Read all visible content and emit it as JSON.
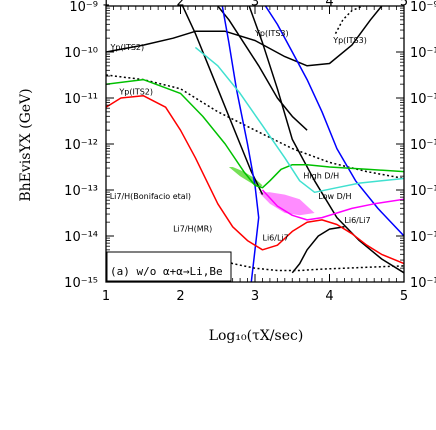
{
  "chart_data": {
    "type": "line",
    "panel_label": "(a) w/o α+α→Li,Be",
    "xlabel": "Log₁₀(τX/sec)",
    "ylabel": "BhEvisYX (GeV)",
    "xlim": [
      1,
      5
    ],
    "ylim": [
      -15,
      -9
    ],
    "y_log": true,
    "x_ticks": [
      {
        "value": 1,
        "label": "1"
      },
      {
        "value": 2,
        "label": "2"
      },
      {
        "value": 3,
        "label": "3"
      },
      {
        "value": 4,
        "label": "4"
      },
      {
        "value": 5,
        "label": "5"
      }
    ],
    "y_ticks": [
      {
        "value": -9,
        "label": "10⁻⁹"
      },
      {
        "value": -10,
        "label": "10⁻¹⁰"
      },
      {
        "value": -11,
        "label": "10⁻¹¹"
      },
      {
        "value": -12,
        "label": "10⁻¹²"
      },
      {
        "value": -13,
        "label": "10⁻¹³"
      },
      {
        "value": -14,
        "label": "10⁻¹⁴"
      },
      {
        "value": -15,
        "label": "10⁻¹⁵"
      }
    ],
    "annotations": [
      {
        "text": "Yp(ITS2)",
        "x": 1.06,
        "y": -9.96
      },
      {
        "text": "Yp(ITS3)",
        "x": 3.0,
        "y": -9.65
      },
      {
        "text": "Yp(ITS3)",
        "x": 4.05,
        "y": -9.8
      },
      {
        "text": "Yp(ITS2)",
        "x": 1.18,
        "y": -10.92
      },
      {
        "text": "Li7/H(Bonifacio etal)",
        "x": 1.05,
        "y": -13.2
      },
      {
        "text": "Li7/H(MR)",
        "x": 1.9,
        "y": -13.9
      },
      {
        "text": "High D/H",
        "x": 3.65,
        "y": -12.75
      },
      {
        "text": "Low D/H",
        "x": 3.85,
        "y": -13.2
      },
      {
        "text": "Li6/Li7",
        "x": 4.2,
        "y": -13.72
      },
      {
        "text": "Li6/Li7",
        "x": 3.1,
        "y": -14.1
      }
    ],
    "series": [
      {
        "color": "#000000",
        "style": "solid",
        "x": [
          1.0,
          1.5,
          1.9,
          2.2,
          2.6,
          3.0,
          3.4,
          3.7,
          4.0,
          4.3,
          4.55,
          4.7
        ],
        "y": [
          -10.0,
          -9.85,
          -9.7,
          -9.55,
          -9.55,
          -9.75,
          -10.1,
          -10.3,
          -10.25,
          -9.85,
          -9.3,
          -9.0
        ]
      },
      {
        "color": "#000000",
        "style": "dotted",
        "x": [
          4.08,
          4.18,
          4.3,
          4.45,
          4.6,
          4.75
        ],
        "y": [
          -9.6,
          -9.3,
          -9.1,
          -9.0,
          -8.95,
          -8.9
        ]
      },
      {
        "color": "#000000",
        "style": "dotted",
        "x": [
          1.0,
          1.5,
          2.0,
          2.5,
          3.0,
          3.5,
          4.0,
          4.5,
          5.0
        ],
        "y": [
          -10.5,
          -10.6,
          -10.8,
          -11.3,
          -11.7,
          -12.1,
          -12.4,
          -12.6,
          -12.75
        ]
      },
      {
        "color": "#000000",
        "style": "solid",
        "x": [
          2.0,
          2.2,
          2.35,
          2.5,
          2.65,
          2.8,
          2.95,
          3.1
        ],
        "y": [
          -8.9,
          -9.6,
          -10.2,
          -10.8,
          -11.4,
          -12.0,
          -12.6,
          -13.1
        ]
      },
      {
        "color": "#000000",
        "style": "solid",
        "x": [
          2.45,
          2.65,
          2.85,
          3.05,
          3.3,
          3.5,
          3.7
        ],
        "y": [
          -8.9,
          -9.3,
          -9.8,
          -10.3,
          -11.0,
          -11.4,
          -11.7
        ]
      },
      {
        "color": "#000000",
        "style": "solid",
        "x": [
          2.9,
          3.1,
          3.3,
          3.5,
          3.8,
          4.1,
          4.4,
          4.7,
          5.0
        ],
        "y": [
          -8.9,
          -9.8,
          -10.8,
          -11.9,
          -12.8,
          -13.6,
          -14.1,
          -14.5,
          -14.8
        ]
      },
      {
        "color": "#000000",
        "style": "solid",
        "x": [
          3.5,
          3.6,
          3.7,
          3.85,
          4.0,
          4.2
        ],
        "y": [
          -14.8,
          -14.6,
          -14.3,
          -14.0,
          -13.85,
          -13.8
        ]
      },
      {
        "color": "#0000ff",
        "style": "solid",
        "x": [
          2.55,
          2.65,
          2.75,
          2.9,
          3.0,
          3.05,
          3.0,
          2.95
        ],
        "y": [
          -8.9,
          -9.8,
          -10.8,
          -12.0,
          -12.9,
          -13.6,
          -14.3,
          -15.0
        ]
      },
      {
        "color": "#0000ff",
        "style": "solid",
        "x": [
          3.1,
          3.3,
          3.5,
          3.7,
          3.9,
          4.1,
          4.35,
          4.65,
          5.0
        ],
        "y": [
          -8.9,
          -9.4,
          -10.0,
          -10.6,
          -11.3,
          -12.1,
          -12.8,
          -13.4,
          -14.0
        ]
      },
      {
        "color": "#00c000",
        "style": "solid",
        "x": [
          1.0,
          1.5,
          2.0,
          2.3,
          2.6,
          2.85,
          3.0,
          3.1,
          3.2,
          3.35,
          3.5,
          3.7,
          4.0,
          4.5,
          5.0
        ],
        "y": [
          -10.7,
          -10.6,
          -10.9,
          -11.4,
          -12.0,
          -12.6,
          -12.9,
          -12.95,
          -12.8,
          -12.55,
          -12.45,
          -12.45,
          -12.5,
          -12.55,
          -12.6
        ]
      },
      {
        "color": "#40e0d0",
        "style": "solid",
        "x": [
          2.2,
          2.5,
          2.8,
          3.1,
          3.4,
          3.6,
          3.8,
          4.1,
          4.4,
          4.7,
          5.0
        ],
        "y": [
          -9.9,
          -10.3,
          -10.9,
          -11.6,
          -12.3,
          -12.8,
          -13.05,
          -12.95,
          -12.85,
          -12.8,
          -12.75
        ]
      },
      {
        "color": "#ff0000",
        "style": "solid",
        "x": [
          1.0,
          1.2,
          1.5,
          1.8,
          2.0,
          2.2,
          2.35,
          2.5,
          2.7,
          2.9,
          3.1,
          3.3,
          3.5,
          3.7,
          3.9,
          4.1,
          4.3,
          4.5,
          4.7,
          5.0
        ],
        "y": [
          -11.2,
          -11.0,
          -10.95,
          -11.2,
          -11.7,
          -12.3,
          -12.8,
          -13.3,
          -13.8,
          -14.1,
          -14.3,
          -14.2,
          -13.9,
          -13.7,
          -13.65,
          -13.75,
          -13.95,
          -14.2,
          -14.4,
          -14.6
        ]
      },
      {
        "color": "#ff00ff",
        "style": "solid",
        "x": [
          3.1,
          3.3,
          3.5,
          3.7,
          3.9,
          4.1,
          4.3,
          4.6,
          5.0
        ],
        "y": [
          -13.0,
          -13.35,
          -13.55,
          -13.65,
          -13.6,
          -13.5,
          -13.4,
          -13.3,
          -13.2
        ]
      },
      {
        "color": "#000000",
        "style": "dotted",
        "x": [
          2.4,
          2.7,
          3.0,
          3.3,
          3.6,
          3.9,
          4.2,
          4.5,
          4.8,
          5.0
        ],
        "y": [
          -14.4,
          -14.6,
          -14.7,
          -14.75,
          -14.75,
          -14.72,
          -14.7,
          -14.68,
          -14.66,
          -14.65
        ]
      }
    ],
    "shaded_regions": [
      {
        "color": "#ff80ff",
        "x": [
          3.05,
          3.2,
          3.4,
          3.6,
          3.8,
          3.6,
          3.4,
          3.2
        ],
        "y": [
          -13.05,
          -13.3,
          -13.5,
          -13.55,
          -13.5,
          -13.2,
          -13.1,
          -13.05
        ]
      },
      {
        "color": "#66dd44",
        "x": [
          2.65,
          2.8,
          2.95,
          3.05,
          3.1,
          3.0,
          2.85,
          2.7
        ],
        "y": [
          -12.5,
          -12.7,
          -12.85,
          -12.95,
          -12.9,
          -12.75,
          -12.6,
          -12.5
        ]
      }
    ]
  }
}
